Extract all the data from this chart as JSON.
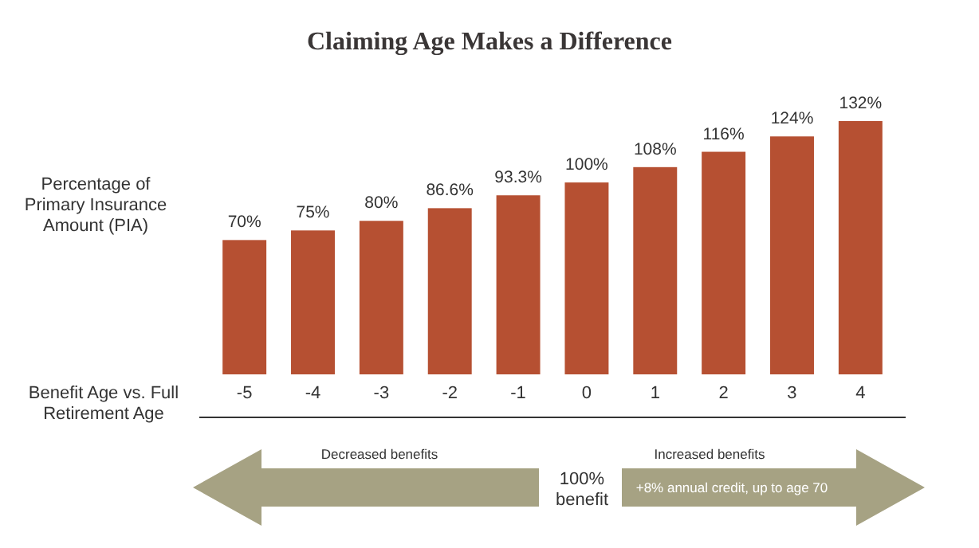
{
  "chart_data": {
    "type": "bar",
    "title": "Claiming Age Makes a Difference",
    "ylabel": "Percentage of Primary Insurance Amount (PIA)",
    "xlabel": "Benefit Age vs. Full Retirement Age",
    "categories": [
      "-5",
      "-4",
      "-3",
      "-2",
      "-1",
      "0",
      "1",
      "2",
      "3",
      "4"
    ],
    "values": [
      70,
      75,
      80,
      86.6,
      93.3,
      100,
      108,
      116,
      124,
      132
    ],
    "value_labels": [
      "70%",
      "75%",
      "80%",
      "86.6%",
      "93.3%",
      "100%",
      "108%",
      "116%",
      "124%",
      "132%"
    ],
    "color": "#b65032",
    "annotations": [
      "Decreased benefits",
      "100% benefit",
      "Increased benefits",
      "+8% annual credit, up to age 70"
    ]
  }
}
